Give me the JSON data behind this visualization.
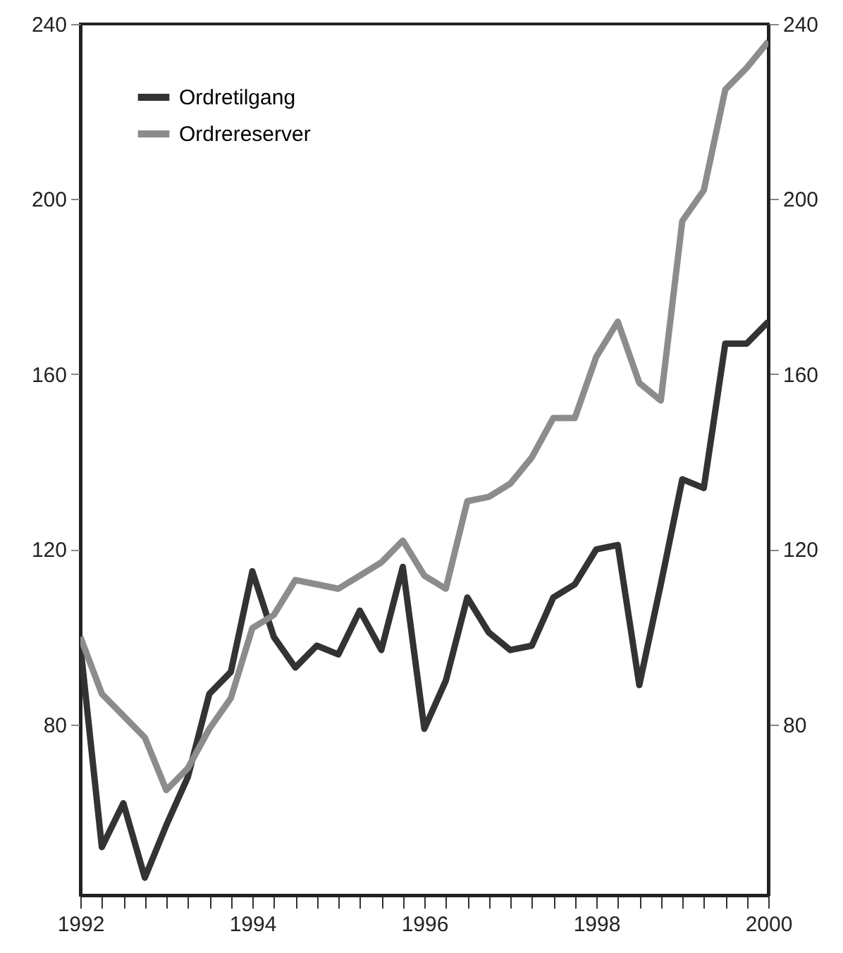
{
  "chart_data": {
    "type": "line",
    "x": [
      1992,
      1992.25,
      1992.5,
      1992.75,
      1993,
      1993.25,
      1993.5,
      1993.75,
      1994,
      1994.25,
      1994.5,
      1994.75,
      1995,
      1995.25,
      1995.5,
      1995.75,
      1996,
      1996.25,
      1996.5,
      1996.75,
      1997,
      1997.25,
      1997.5,
      1997.75,
      1998,
      1998.25,
      1998.5,
      1998.75,
      1999,
      1999.25,
      1999.5,
      1999.75,
      2000
    ],
    "series": [
      {
        "name": "Ordretilgang",
        "color": "#333333",
        "values": [
          98,
          52,
          62,
          45,
          57,
          68,
          87,
          92,
          115,
          100,
          93,
          98,
          96,
          106,
          97,
          116,
          79,
          90,
          109,
          101,
          97,
          98,
          109,
          112,
          120,
          121,
          89,
          112,
          136,
          134,
          167,
          167,
          172
        ]
      },
      {
        "name": "Ordrereserver",
        "color": "#8c8c8c",
        "values": [
          100,
          87,
          82,
          77,
          65,
          70,
          79,
          86,
          102,
          105,
          113,
          112,
          111,
          114,
          117,
          122,
          114,
          111,
          131,
          132,
          135,
          141,
          150,
          150,
          164,
          172,
          158,
          154,
          195,
          202,
          225,
          230,
          236
        ]
      }
    ],
    "xlim": [
      1992,
      2000
    ],
    "xticks": [
      1992,
      {
        "value": 1992.25,
        "label": null
      },
      {
        "value": 1992.5,
        "label": null
      },
      {
        "value": 1992.75,
        "label": null
      },
      {
        "value": 1993,
        "label": null
      },
      {
        "value": 1993.25,
        "label": null
      },
      {
        "value": 1993.5,
        "label": null
      },
      {
        "value": 1993.75,
        "label": null
      },
      1994,
      {
        "value": 1994.25,
        "label": null
      },
      {
        "value": 1994.5,
        "label": null
      },
      {
        "value": 1994.75,
        "label": null
      },
      {
        "value": 1995,
        "label": null
      },
      {
        "value": 1995.25,
        "label": null
      },
      {
        "value": 1995.5,
        "label": null
      },
      {
        "value": 1995.75,
        "label": null
      },
      1996,
      {
        "value": 1996.25,
        "label": null
      },
      {
        "value": 1996.5,
        "label": null
      },
      {
        "value": 1996.75,
        "label": null
      },
      {
        "value": 1997,
        "label": null
      },
      {
        "value": 1997.25,
        "label": null
      },
      {
        "value": 1997.5,
        "label": null
      },
      {
        "value": 1997.75,
        "label": null
      },
      1998,
      {
        "value": 1998.25,
        "label": null
      },
      {
        "value": 1998.5,
        "label": null
      },
      {
        "value": 1998.75,
        "label": null
      },
      {
        "value": 1999,
        "label": null
      },
      {
        "value": 1999.25,
        "label": null
      },
      {
        "value": 1999.5,
        "label": null
      },
      {
        "value": 1999.75,
        "label": null
      },
      2000
    ],
    "ylim": [
      41,
      240
    ],
    "yticks": [
      80,
      120,
      160,
      200,
      240
    ],
    "y2lim": [
      41,
      240
    ],
    "y2ticks": [
      80,
      120,
      160,
      200,
      240
    ],
    "grid": false,
    "legend": "top left",
    "marker": "none",
    "line_style": "solid"
  }
}
